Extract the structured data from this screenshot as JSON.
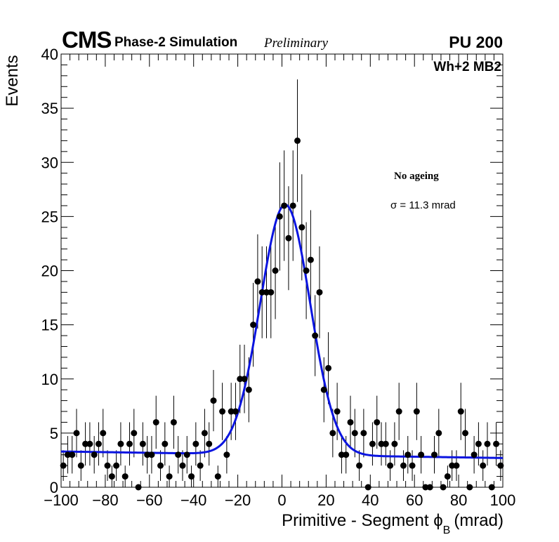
{
  "header": {
    "experiment": "CMS",
    "simulation": "Phase-2 Simulation",
    "status": "Preliminary",
    "pileup": "PU 200"
  },
  "chart_data": {
    "type": "scatter",
    "title": "",
    "xlabel": "Primitive - Segment ϕ",
    "xlabel_subscript": "B",
    "xlabel_unit": "(mrad)",
    "ylabel": "Events",
    "xlim": [
      -100,
      100
    ],
    "ylim": [
      0,
      40
    ],
    "x_ticks": [
      -100,
      -80,
      -60,
      -40,
      -20,
      0,
      20,
      40,
      60,
      80,
      100
    ],
    "x_tick_labels": [
      "−100",
      "−80",
      "−60",
      "−40",
      "−20",
      "0",
      "20",
      "40",
      "60",
      "80",
      "100"
    ],
    "y_ticks": [
      0,
      5,
      10,
      15,
      20,
      25,
      30,
      35,
      40
    ],
    "y_tick_labels": [
      "0",
      "5",
      "10",
      "15",
      "20",
      "25",
      "30",
      "35",
      "40"
    ],
    "station_label": "Wh+2 MB2",
    "legend_title": "No ageing",
    "fit_annotation": "σ = 11.3 mrad",
    "marker_color": "#000000",
    "fit_color": "#0a14e0",
    "bin_width": 2,
    "series": [
      {
        "name": "Data",
        "x": [
          -99,
          -97,
          -95,
          -93,
          -91,
          -89,
          -87,
          -85,
          -83,
          -81,
          -79,
          -77,
          -75,
          -73,
          -71,
          -69,
          -67,
          -65,
          -63,
          -61,
          -59,
          -57,
          -55,
          -53,
          -51,
          -49,
          -47,
          -45,
          -43,
          -41,
          -39,
          -37,
          -35,
          -33,
          -31,
          -29,
          -27,
          -25,
          -23,
          -21,
          -19,
          -17,
          -15,
          -13,
          -11,
          -9,
          -7,
          -5,
          -3,
          -1,
          1,
          3,
          5,
          7,
          9,
          11,
          13,
          15,
          17,
          19,
          21,
          23,
          25,
          27,
          29,
          31,
          33,
          35,
          37,
          39,
          41,
          43,
          45,
          47,
          49,
          51,
          53,
          55,
          57,
          59,
          61,
          63,
          65,
          67,
          69,
          71,
          73,
          75,
          77,
          79,
          81,
          83,
          85,
          87,
          89,
          91,
          93,
          95,
          97,
          99
        ],
        "y": [
          2,
          3,
          3,
          5,
          2,
          4,
          4,
          3,
          4,
          5,
          2,
          1,
          2,
          4,
          1,
          4,
          5,
          0,
          4,
          3,
          3,
          6,
          2,
          4,
          1,
          6,
          3,
          2,
          3,
          1,
          4,
          2,
          5,
          4,
          8,
          1,
          7,
          3,
          7,
          7,
          10,
          10,
          9,
          15,
          19,
          18,
          18,
          18,
          20,
          25,
          26,
          23,
          26,
          32,
          24,
          20,
          21,
          14,
          18,
          9,
          11,
          5,
          7,
          3,
          3,
          6,
          5,
          2,
          5,
          0,
          4,
          6,
          4,
          4,
          2,
          4,
          7,
          2,
          3,
          2,
          7,
          3,
          0,
          0,
          3,
          5,
          0,
          1,
          2,
          2,
          7,
          5,
          0,
          3,
          4,
          2,
          4,
          0,
          4,
          2
        ]
      },
      {
        "name": "Fit",
        "function": "gaussian+linear",
        "mean": 1.5,
        "sigma": 11.3,
        "amplitude": 23.1,
        "background_intercept": 3.0,
        "background_slope": -0.003
      }
    ]
  }
}
